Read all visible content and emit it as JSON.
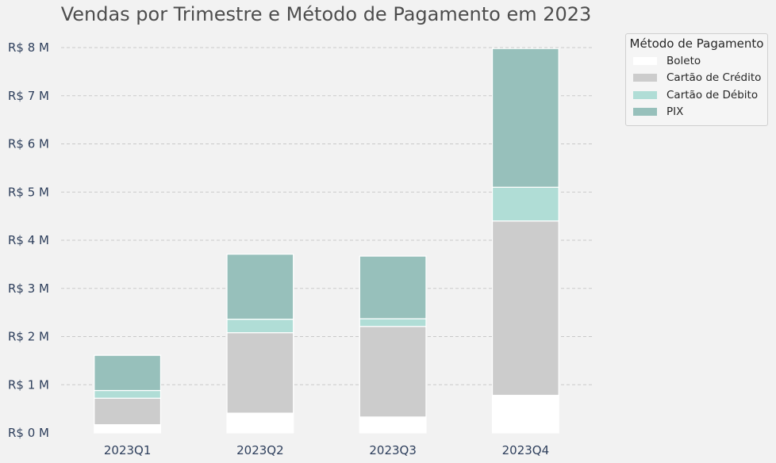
{
  "chart_data": {
    "type": "bar",
    "stacked": true,
    "title": "Vendas por Trimestre e Método de Pagamento em 2023",
    "xlabel": "",
    "ylabel": "",
    "categories": [
      "2023Q1",
      "2023Q2",
      "2023Q3",
      "2023Q4"
    ],
    "series": [
      {
        "name": "Boleto",
        "color": "#ffffff",
        "values": [
          0.17,
          0.41,
          0.33,
          0.78
        ]
      },
      {
        "name": "Cartão de Crédito",
        "color": "#cccccc",
        "values": [
          0.55,
          1.67,
          1.88,
          3.62
        ]
      },
      {
        "name": "Cartão de Débito",
        "color": "#b0ddd6",
        "values": [
          0.16,
          0.28,
          0.16,
          0.7
        ]
      },
      {
        "name": "PIX",
        "color": "#97c0bb",
        "values": [
          0.73,
          1.35,
          1.3,
          2.88
        ]
      }
    ],
    "ylim": [
      0,
      8
    ],
    "yticks": [
      0,
      1,
      2,
      3,
      4,
      5,
      6,
      7,
      8
    ],
    "ytick_labels": [
      "R$ 0 M",
      "R$ 1 M",
      "R$ 2 M",
      "R$ 3 M",
      "R$ 4 M",
      "R$ 5 M",
      "R$ 6 M",
      "R$ 7 M",
      "R$ 8 M"
    ],
    "grid": "horizontal dashed",
    "legend": {
      "title": "Método de Pagamento",
      "position": "outside-top-right"
    }
  }
}
